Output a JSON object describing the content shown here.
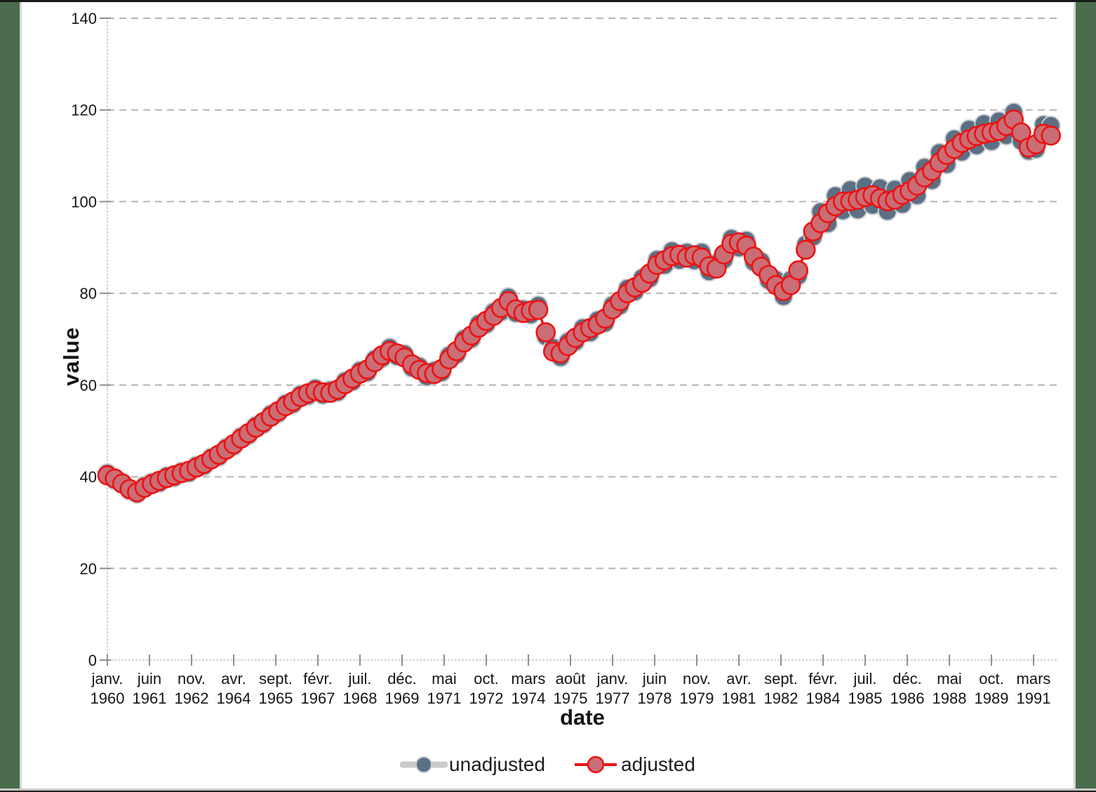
{
  "colors": {
    "adjusted_stroke": "#ee1111",
    "adjusted_fill": "#c96e76",
    "unadjusted_marker": "#5b7084",
    "unadjusted_marker_edge": "#c9ccce",
    "unadjusted_line": "#c8cacc",
    "gridline": "#b5b5b5",
    "axis_line": "#c6c6c6",
    "tick_mark": "#8f8f8f",
    "tick_label": "#161616",
    "frame_green": "#4a6c4c"
  },
  "axes": {
    "y_title": "value",
    "x_title": "date",
    "y_tick_labels": [
      "0",
      "20",
      "40",
      "60",
      "80",
      "100",
      "120",
      "140"
    ],
    "y_tick_values": [
      0,
      20,
      40,
      60,
      80,
      100,
      120,
      140
    ]
  },
  "legend": {
    "unadjusted_label": "unadjusted",
    "adjusted_label": "adjusted"
  },
  "chart_data": {
    "type": "line",
    "title": "",
    "xlabel": "date",
    "ylabel": "value",
    "ylim": [
      0,
      140
    ],
    "grid": "horizontal-dashed",
    "legend_position": "bottom-center",
    "frequency": "quarterly",
    "start": "janv. 1960",
    "end": "oct. 1991",
    "x_ticks": [
      {
        "month_offset": 0,
        "line1": "janv.",
        "line2": "1960"
      },
      {
        "month_offset": 17,
        "line1": "juin",
        "line2": "1961"
      },
      {
        "month_offset": 34,
        "line1": "nov.",
        "line2": "1962"
      },
      {
        "month_offset": 51,
        "line1": "avr.",
        "line2": "1964"
      },
      {
        "month_offset": 68,
        "line1": "sept.",
        "line2": "1965"
      },
      {
        "month_offset": 85,
        "line1": "févr.",
        "line2": "1967"
      },
      {
        "month_offset": 102,
        "line1": "juil.",
        "line2": "1968"
      },
      {
        "month_offset": 119,
        "line1": "déc.",
        "line2": "1969"
      },
      {
        "month_offset": 136,
        "line1": "mai",
        "line2": "1971"
      },
      {
        "month_offset": 153,
        "line1": "oct.",
        "line2": "1972"
      },
      {
        "month_offset": 170,
        "line1": "mars",
        "line2": "1974"
      },
      {
        "month_offset": 187,
        "line1": "août",
        "line2": "1975"
      },
      {
        "month_offset": 204,
        "line1": "janv.",
        "line2": "1977"
      },
      {
        "month_offset": 221,
        "line1": "juin",
        "line2": "1978"
      },
      {
        "month_offset": 238,
        "line1": "nov.",
        "line2": "1979"
      },
      {
        "month_offset": 255,
        "line1": "avr.",
        "line2": "1981"
      },
      {
        "month_offset": 272,
        "line1": "sept.",
        "line2": "1982"
      },
      {
        "month_offset": 289,
        "line1": "févr.",
        "line2": "1984"
      },
      {
        "month_offset": 306,
        "line1": "juil.",
        "line2": "1985"
      },
      {
        "month_offset": 323,
        "line1": "déc.",
        "line2": "1986"
      },
      {
        "month_offset": 340,
        "line1": "mai",
        "line2": "1988"
      },
      {
        "month_offset": 357,
        "line1": "oct.",
        "line2": "1989"
      },
      {
        "month_offset": 374,
        "line1": "mars",
        "line2": "1991"
      }
    ],
    "series": [
      {
        "name": "unadjusted",
        "values": [
          40.8,
          39.2,
          38.9,
          36.9,
          36.2,
          38.1,
          38.8,
          38.6,
          40.2,
          39.8,
          41.2,
          40.8,
          42.5,
          42.3,
          44.3,
          44.3,
          46.4,
          46.6,
          48.8,
          49.0,
          51.2,
          51.4,
          53.7,
          53.8,
          56.0,
          55.8,
          58.0,
          57.6,
          59.3,
          57.8,
          58.9,
          58.4,
          60.9,
          60.7,
          63.2,
          62.7,
          65.7,
          65.8,
          68.2,
          66.2,
          66.8,
          63.7,
          64.1,
          61.8,
          63.2,
          62.7,
          66.5,
          66.6,
          70.1,
          70.0,
          73.4,
          73.2,
          76.0,
          75.9,
          79.2,
          75.6,
          76.6,
          75.3,
          77.4,
          70.6,
          68.2,
          66.0,
          69.5,
          69.4,
          72.5,
          71.4,
          74.2,
          73.5,
          77.5,
          77.3,
          81.1,
          80.3,
          83.4,
          83.2,
          87.4,
          86.1,
          89.3,
          87.2,
          89.0,
          87.1,
          89.0,
          84.7,
          86.6,
          87.3,
          92.0,
          89.9,
          91.6,
          86.8,
          87.0,
          82.8,
          83.0,
          79.3,
          83.0,
          83.8,
          90.7,
          92.3,
          97.8,
          95.2,
          101.3,
          98.0,
          102.6,
          98.2,
          103.4,
          99.2,
          103.0,
          97.9,
          102.7,
          99.4,
          104.6,
          101.3,
          107.5,
          104.6,
          110.7,
          108.1,
          113.7,
          110.8,
          115.8,
          112.2,
          117.0,
          113.1,
          117.6,
          114.4,
          119.5,
          113.2,
          111.0,
          111.4,
          116.8,
          116.6
        ]
      },
      {
        "name": "adjusted",
        "values": [
          40.3,
          39.6,
          38.5,
          37.3,
          36.6,
          37.6,
          38.4,
          39.1,
          39.7,
          40.3,
          40.8,
          41.3,
          42.0,
          42.8,
          43.8,
          44.8,
          45.9,
          47.1,
          48.3,
          49.5,
          50.7,
          51.9,
          53.1,
          54.3,
          55.4,
          56.4,
          57.4,
          58.2,
          58.7,
          58.4,
          58.3,
          59.0,
          60.2,
          61.4,
          62.5,
          63.4,
          65.0,
          66.5,
          67.4,
          66.9,
          66.0,
          64.5,
          63.3,
          62.6,
          62.4,
          63.5,
          65.6,
          67.4,
          69.3,
          70.8,
          72.5,
          74.0,
          75.1,
          76.8,
          78.3,
          76.5,
          75.7,
          76.2,
          76.4,
          71.5,
          67.3,
          66.9,
          68.5,
          70.3,
          71.5,
          72.4,
          73.2,
          74.5,
          76.5,
          78.3,
          80.0,
          81.3,
          82.3,
          84.3,
          86.2,
          87.2,
          88.1,
          88.4,
          87.8,
          88.3,
          87.8,
          85.9,
          85.4,
          88.5,
          90.8,
          91.1,
          90.4,
          88.0,
          85.8,
          84.0,
          81.8,
          80.5,
          81.8,
          85.0,
          89.5,
          93.5,
          95.3,
          97.5,
          99.0,
          100.0,
          100.1,
          100.4,
          101.0,
          101.4,
          100.7,
          100.1,
          100.4,
          101.5,
          102.3,
          103.5,
          105.3,
          106.7,
          108.5,
          110.2,
          111.5,
          112.8,
          113.6,
          114.3,
          114.8,
          115.1,
          115.4,
          116.5,
          117.9,
          115.1,
          111.8,
          112.5,
          114.8,
          114.4
        ]
      }
    ]
  }
}
